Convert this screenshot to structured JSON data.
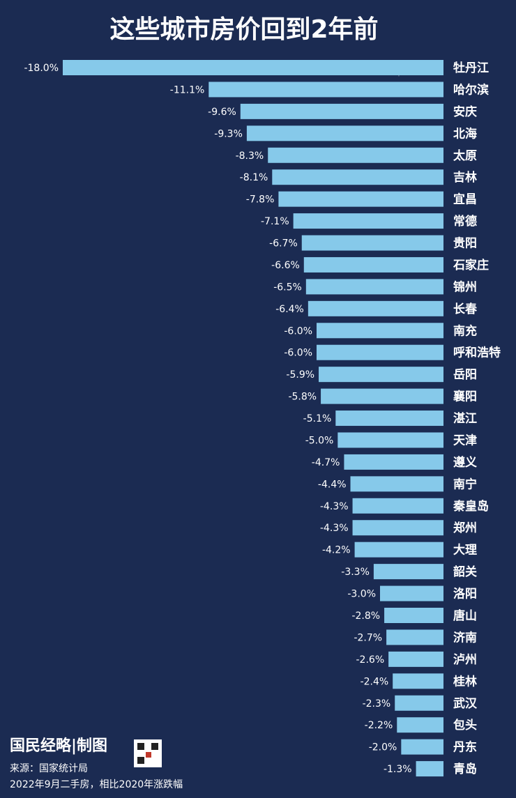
{
  "chart_data": {
    "type": "bar",
    "horizontal": true,
    "title": "这些城市房价回到2年前",
    "categories": [
      "牡丹江",
      "哈尔滨",
      "安庆",
      "北海",
      "太原",
      "吉林",
      "宜昌",
      "常德",
      "贵阳",
      "石家庄",
      "锦州",
      "长春",
      "南充",
      "呼和浩特",
      "岳阳",
      "襄阳",
      "湛江",
      "天津",
      "遵义",
      "南宁",
      "秦皇岛",
      "郑州",
      "大理",
      "韶关",
      "洛阳",
      "唐山",
      "济南",
      "泸州",
      "桂林",
      "武汉",
      "包头",
      "丹东",
      "青岛"
    ],
    "values": [
      -18.0,
      -11.1,
      -9.6,
      -9.3,
      -8.3,
      -8.1,
      -7.8,
      -7.1,
      -6.7,
      -6.6,
      -6.5,
      -6.4,
      -6.0,
      -6.0,
      -5.9,
      -5.8,
      -5.1,
      -5.0,
      -4.7,
      -4.4,
      -4.3,
      -4.3,
      -4.2,
      -3.3,
      -3.0,
      -2.8,
      -2.7,
      -2.6,
      -2.4,
      -2.3,
      -2.2,
      -2.0,
      -1.3
    ],
    "value_labels": [
      "-18.0%",
      "-11.1%",
      "-9.6%",
      "-9.3%",
      "-8.3%",
      "-8.1%",
      "-7.8%",
      "-7.1%",
      "-6.7%",
      "-6.6%",
      "-6.5%",
      "-6.4%",
      "-6.0%",
      "-6.0%",
      "-5.9%",
      "-5.8%",
      "-5.1%",
      "-5.0%",
      "-4.7%",
      "-4.4%",
      "-4.3%",
      "-4.3%",
      "-4.2%",
      "-3.3%",
      "-3.0%",
      "-2.8%",
      "-2.7%",
      "-2.6%",
      "-2.4%",
      "-2.3%",
      "-2.2%",
      "-2.0%",
      "-1.3%"
    ],
    "color": "#86c9ea",
    "xlim": [
      -18,
      0
    ],
    "watermark": "国民经略|制图",
    "source": "来源：国家统计局",
    "note": "2022年9月二手房，相比2020年涨跌幅"
  }
}
